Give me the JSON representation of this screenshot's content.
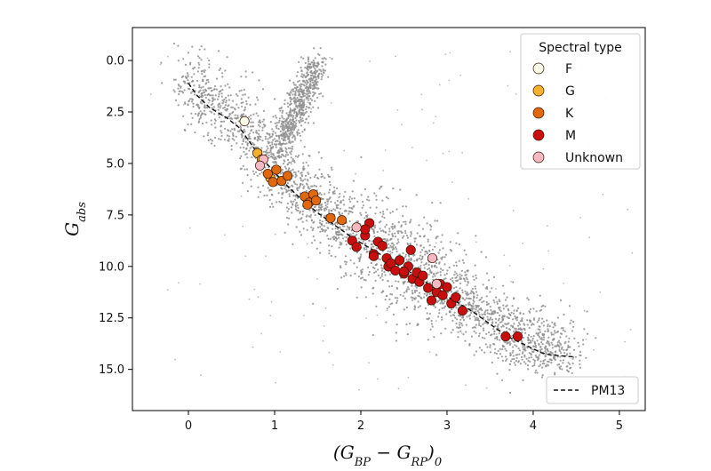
{
  "chart_data": {
    "type": "scatter",
    "xlabel": "(G_BP − G_RP)_0",
    "ylabel": "G_abs",
    "xlim": [
      -0.65,
      5.3
    ],
    "ylim": [
      17.0,
      -1.6
    ],
    "y_inverted": true,
    "xticks": [
      0,
      1,
      2,
      3,
      4,
      5
    ],
    "yticks": [
      0.0,
      2.5,
      5.0,
      7.5,
      10.0,
      12.5,
      15.0
    ],
    "xtick_labels": [
      "0",
      "1",
      "2",
      "3",
      "4",
      "5"
    ],
    "ytick_labels": [
      "0.0",
      "2.5",
      "5.0",
      "7.5",
      "10.0",
      "12.5",
      "15.0"
    ],
    "grid": false,
    "background_cloud": {
      "description_color": "#8f8f8f",
      "outlier_color": "#b8bec0"
    },
    "legend": {
      "title": "Spectral type",
      "placement": "top-right",
      "entries": [
        {
          "label": "F",
          "color": "#fafae6"
        },
        {
          "label": "G",
          "color": "#f4b12a"
        },
        {
          "label": "K",
          "color": "#e0680e"
        },
        {
          "label": "M",
          "color": "#c80e0e"
        },
        {
          "label": "Unknown",
          "color": "#f4b9c2"
        }
      ]
    },
    "line_legend": {
      "label": "PM13",
      "placement": "bottom-right"
    },
    "pm13_line": {
      "x": [
        0.0,
        0.1,
        0.25,
        0.45,
        0.6,
        0.7,
        0.8,
        0.95,
        1.1,
        1.3,
        1.5,
        1.7,
        1.9,
        2.1,
        2.3,
        2.5,
        2.7,
        2.9,
        3.1,
        3.3,
        3.5,
        3.7,
        3.9,
        4.1,
        4.2,
        4.5
      ],
      "y": [
        1.1,
        1.7,
        2.3,
        2.8,
        3.3,
        3.9,
        4.5,
        5.2,
        5.9,
        6.7,
        7.4,
        8.0,
        8.6,
        9.1,
        9.6,
        10.1,
        10.6,
        11.2,
        11.7,
        12.2,
        12.8,
        13.4,
        13.8,
        14.2,
        14.3,
        14.4
      ]
    },
    "series": [
      {
        "name": "F",
        "color": "#fafae6",
        "x": [
          0.65
        ],
        "y": [
          2.95
        ]
      },
      {
        "name": "G",
        "color": "#f4b12a",
        "x": [
          0.8,
          0.85,
          0.95
        ],
        "y": [
          4.5,
          4.8,
          5.7
        ]
      },
      {
        "name": "K",
        "color": "#e0680e",
        "x": [
          0.92,
          0.98,
          1.02,
          1.08,
          1.15,
          1.35,
          1.4,
          1.45,
          1.48,
          1.38,
          1.65,
          1.78
        ],
        "y": [
          5.5,
          5.9,
          5.3,
          5.85,
          5.6,
          6.6,
          6.9,
          6.5,
          6.8,
          7.0,
          7.65,
          7.75
        ]
      },
      {
        "name": "M",
        "color": "#c80e0e",
        "x": [
          1.9,
          1.95,
          2.05,
          2.1,
          2.15,
          2.2,
          2.25,
          2.3,
          2.32,
          2.35,
          2.4,
          2.45,
          2.5,
          2.55,
          2.58,
          2.6,
          2.65,
          2.68,
          2.72,
          2.78,
          2.82,
          2.88,
          2.92,
          2.95,
          3.0,
          3.05,
          3.1,
          3.18,
          2.05,
          2.15,
          2.5,
          3.68,
          3.82
        ],
        "y": [
          8.75,
          9.05,
          8.5,
          7.9,
          9.4,
          8.8,
          9.0,
          9.6,
          10.0,
          9.85,
          10.2,
          9.7,
          10.35,
          10.0,
          9.2,
          10.6,
          10.3,
          10.75,
          10.45,
          11.05,
          11.65,
          11.25,
          10.85,
          11.4,
          11.0,
          11.8,
          11.5,
          12.15,
          8.2,
          9.5,
          10.25,
          13.4,
          13.4
        ]
      },
      {
        "name": "Unknown",
        "color": "#f4b9c2",
        "x": [
          0.87,
          0.83,
          1.95,
          2.83,
          2.88
        ],
        "y": [
          4.8,
          5.1,
          8.1,
          9.6,
          10.85
        ]
      }
    ]
  }
}
